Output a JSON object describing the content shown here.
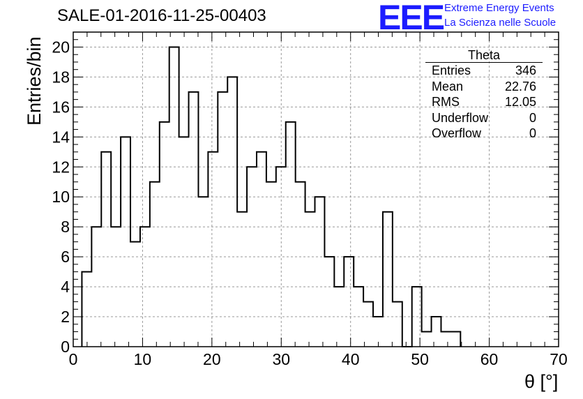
{
  "title": "SALE-01-2016-11-25-00403",
  "logo": {
    "letters": "EEE",
    "line1": "Extreme Energy Events",
    "line2": "La Scienza nelle Scuole",
    "color": "#1c1cff"
  },
  "stats_box": {
    "title": "Theta",
    "rows": [
      {
        "label": "Entries",
        "value": "346"
      },
      {
        "label": "Mean",
        "value": "22.76"
      },
      {
        "label": "RMS",
        "value": "12.05"
      },
      {
        "label": "Underflow",
        "value": "0"
      },
      {
        "label": "Overflow",
        "value": "0"
      }
    ]
  },
  "chart_data": {
    "type": "bar",
    "style": "step-histogram",
    "title": "SALE-01-2016-11-25-00403",
    "xlabel": "θ [°]",
    "ylabel": "Entries/bin",
    "xlim": [
      0,
      70
    ],
    "ylim": [
      0,
      21
    ],
    "xticks": [
      0,
      10,
      20,
      30,
      40,
      50,
      60,
      70
    ],
    "yticks": [
      0,
      2,
      4,
      6,
      8,
      10,
      12,
      14,
      16,
      18,
      20
    ],
    "grid": true,
    "bin_start": 1.25,
    "bin_width": 1.4,
    "values": [
      5,
      8,
      13,
      8,
      14,
      7,
      8,
      11,
      15,
      20,
      14,
      17,
      10,
      13,
      17,
      18,
      9,
      12,
      13,
      11,
      12,
      15,
      11,
      9,
      10,
      6,
      4,
      6,
      4,
      3,
      2,
      9,
      3,
      0,
      4,
      1,
      2,
      1,
      1
    ]
  }
}
